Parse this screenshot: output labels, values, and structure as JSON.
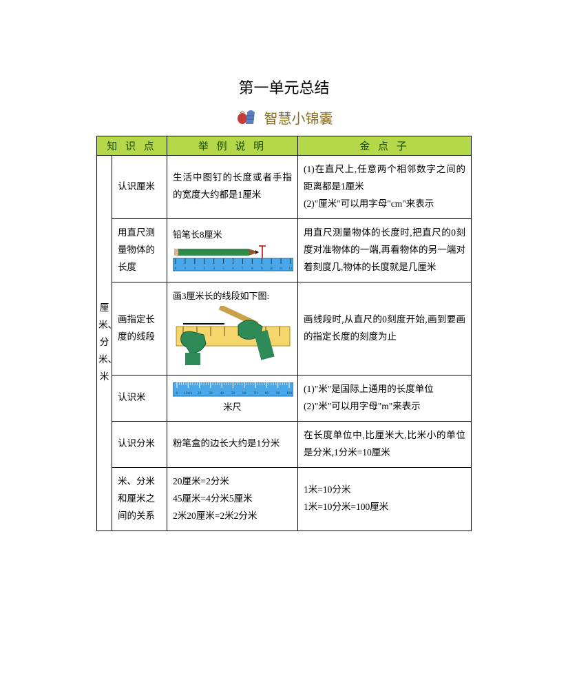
{
  "title": "第一单元总结",
  "subtitle": "智慧小锦囊",
  "headers": {
    "c1": "知 识 点",
    "c2": "举 例 说 明",
    "c3": "金 点 子"
  },
  "sideLabel": "厘米、分米、米",
  "colors": {
    "header_bg": "#b5d84a",
    "header_text": "#1a4a1a",
    "subtitle_text": "#8a6d1f",
    "border": "#000000",
    "ruler_body": "#4aa8e8",
    "ruler_yellow": "#f5d76e",
    "pencil_green": "#2e8b4a",
    "hand_green": "#2e8b57",
    "apple_red": "#c73a3a",
    "pouch_blue": "#5a7fc0"
  },
  "rows": [
    {
      "kp": "认识厘米",
      "ex": "生活中图钉的长度或者手指的宽度大约都是1厘米",
      "tip": "(1)在直尺上,任意两个相邻数字之间的距离都是1厘米\n(2)\"厘米\"可以用字母\"cm\"来表示"
    },
    {
      "kp": "用直尺测量物体的长度",
      "exCaption": "铅笔长8厘米",
      "tip": "用直尺测量物体的长度时,把直尺的0刻度对准物体的一端,再看物体的另一端对着刻度几,物体的长度就是几厘米"
    },
    {
      "kp": "画指定长度的线段",
      "exCaption": "画3厘米长的线段如下图:",
      "tip": "画线段时,从直尺的0刻度开始,画到要画的指定长度的刻度为止"
    },
    {
      "kp": "认识米",
      "exCaption": "米尺",
      "tip": "(1)\"米\"是国际上通用的长度单位\n(2)\"米\"可以用字母\"m\"来表示"
    },
    {
      "kp": "认识分米",
      "ex": "粉笔盒的边长大约是1分米",
      "tip": "在长度单位中,比厘米大,比米小的单位是分米,1分米=10厘米"
    },
    {
      "kp": "米、分米和厘米之间的关系",
      "ex": "20厘米=2分米\n45厘米=4分米5厘米\n2米20厘米=2米2分米",
      "tip": "1米=10分米\n1米=10分米=100厘米"
    }
  ],
  "pencilRuler": {
    "ticks": [
      "0",
      "1",
      "2",
      "3",
      "4",
      "5",
      "6",
      "7",
      "8",
      "9",
      "10",
      "11",
      "12"
    ]
  },
  "meterRuler": {
    "ticks": [
      "0",
      "10cm",
      "20",
      "30",
      "40",
      "50",
      "60",
      "70",
      "80",
      "90",
      "100"
    ]
  }
}
